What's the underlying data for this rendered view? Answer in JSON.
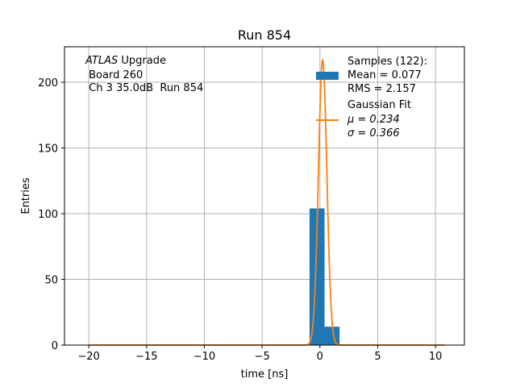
{
  "chart_data": {
    "type": "bar",
    "title": "Run 854",
    "xlabel": "time [ns]",
    "ylabel": "Entries",
    "xlim": [
      -22.1,
      12.5
    ],
    "ylim": [
      0,
      227
    ],
    "xticks": [
      -20,
      -15,
      -10,
      -5,
      0,
      5,
      10
    ],
    "xtick_labels": [
      "−20",
      "−15",
      "−10",
      "−5",
      "0",
      "5",
      "10"
    ],
    "yticks": [
      0,
      50,
      100,
      150,
      200
    ],
    "ytick_labels": [
      "0",
      "50",
      "100",
      "150",
      "200"
    ],
    "grid": true,
    "legend_position": "top-right",
    "annotation": {
      "line1_italic": "ATLAS",
      "line1_rest": " Upgrade",
      "line2": " Board 260",
      "line3": " Ch 3 35.0dB  Run 854"
    },
    "histogram": {
      "name": "Samples (122):",
      "stats": [
        "Mean = 0.077",
        "RMS = 2.157"
      ],
      "color": "#1f77b4",
      "bins": [
        {
          "x0": -0.9,
          "x1": 0.4,
          "count": 104
        },
        {
          "x0": 0.4,
          "x1": 1.7,
          "count": 14
        }
      ]
    },
    "fit": {
      "name": "Gaussian Fit",
      "mu_label": "μ = 0.234",
      "sigma_label": "σ = 0.366",
      "color": "#ff7f0e",
      "mu": 0.234,
      "sigma": 0.366,
      "amplitude": 217,
      "x_range": [
        -20.0,
        10.8
      ]
    }
  }
}
